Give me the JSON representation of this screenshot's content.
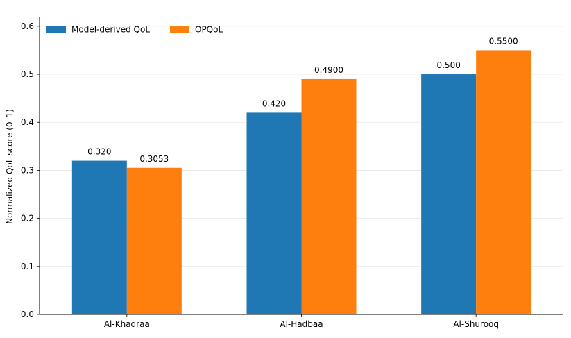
{
  "chart_data": {
    "type": "bar",
    "title": "",
    "xlabel": "",
    "ylabel": "Normalized QoL score (0–1)",
    "categories": [
      "Al-Khadraa",
      "Al-Hadbaa",
      "Al-Shurooq"
    ],
    "series": [
      {
        "name": "Model-derived QoL",
        "values": [
          0.32,
          0.42,
          0.5
        ],
        "labels": [
          "0.320",
          "0.420",
          "0.500"
        ],
        "color": "#1f77b4"
      },
      {
        "name": "OPQoL",
        "values": [
          0.3053,
          0.49,
          0.55
        ],
        "labels": [
          "0.3053",
          "0.4900",
          "0.5500"
        ],
        "color": "#ff7f0e"
      }
    ],
    "ylim": [
      0,
      0.62
    ],
    "yticks": [
      0,
      0.1,
      0.2,
      0.3,
      0.4,
      0.5,
      0.6
    ],
    "ytick_labels": [
      "0.0",
      "0.1",
      "0.2",
      "0.3",
      "0.4",
      "0.5",
      "0.6"
    ],
    "grid": "horizontal",
    "legend_position": "top-left"
  }
}
